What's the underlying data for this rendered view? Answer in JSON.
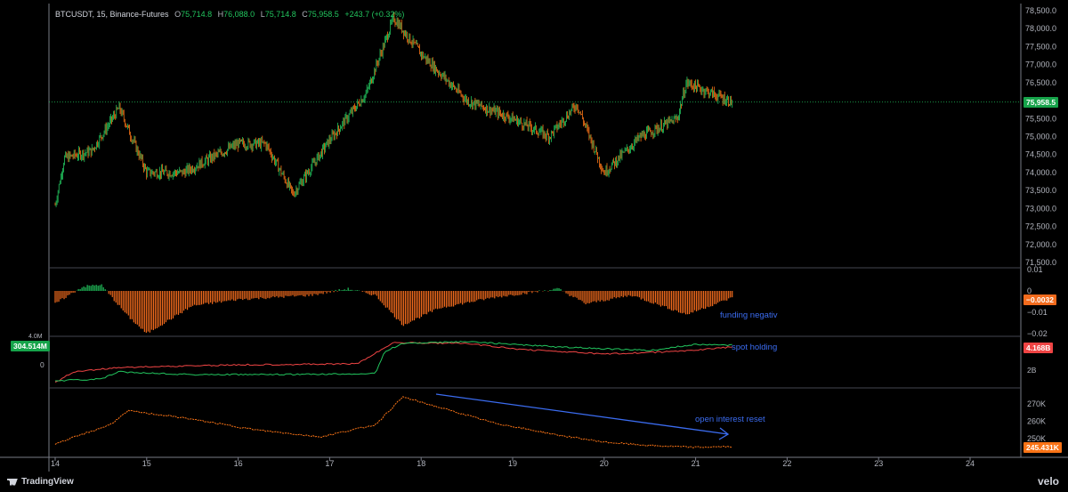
{
  "header": {
    "symbol": "BTCUSDT, 15, Binance-Futures",
    "o_label": "O",
    "o_value": "75,714.8",
    "h_label": "H",
    "h_value": "76,088.0",
    "l_label": "L",
    "l_value": "75,714.8",
    "c_label": "C",
    "c_value": "75,958.5",
    "change": "+243.7 (+0.32%)"
  },
  "colors": {
    "up": "#22c55e",
    "down": "#f97316",
    "funding_pos": "#22c55e",
    "funding_neg": "#f26b1d",
    "line_red": "#ef4444",
    "line_green": "#22c55e",
    "oi_line": "#f97316",
    "annotation": "#3b6cf0",
    "price_tag": "#16a34a",
    "axis_text": "#b2b5be"
  },
  "price_axis": {
    "ticks": [
      "78,500.0",
      "78,000.0",
      "77,500.0",
      "77,000.0",
      "76,500.0",
      "76,000.0",
      "75,500.0",
      "75,000.0",
      "74,500.0",
      "74,000.0",
      "73,500.0",
      "73,000.0",
      "72,500.0",
      "72,000.0",
      "71,500.0"
    ],
    "current": "75,958.5"
  },
  "funding_axis": {
    "ticks": [
      "0.01",
      "0",
      "−0.01",
      "−0.02"
    ],
    "current": "−0.0032"
  },
  "holding_axis": {
    "left_tag": "304.514M",
    "left_top_cut": "4.0M",
    "left_zero": "0",
    "right_tag": "4.168B",
    "right_tick": "2B"
  },
  "oi_axis": {
    "ticks": [
      "270K",
      "260K",
      "250K"
    ],
    "current": "245.431K"
  },
  "x_axis": {
    "ticks": [
      "14",
      "15",
      "16",
      "17",
      "18",
      "19",
      "20",
      "21",
      "22",
      "23",
      "24"
    ]
  },
  "annotations": {
    "funding": "funding negativ",
    "spot": "spot holding",
    "oi": "open interest reset"
  },
  "footer": {
    "brand": "TradingView",
    "right_brand": "velo"
  },
  "chart_data": {
    "type": "line",
    "ylim": [
      71250,
      78600
    ],
    "keypoints_close": [
      {
        "x": 14.0,
        "y": 73100
      },
      {
        "x": 14.1,
        "y": 74400
      },
      {
        "x": 14.4,
        "y": 74600
      },
      {
        "x": 14.7,
        "y": 75800
      },
      {
        "x": 15.0,
        "y": 74000
      },
      {
        "x": 15.4,
        "y": 74000
      },
      {
        "x": 16.0,
        "y": 74800
      },
      {
        "x": 16.3,
        "y": 74800
      },
      {
        "x": 16.6,
        "y": 73400
      },
      {
        "x": 17.0,
        "y": 74900
      },
      {
        "x": 17.4,
        "y": 76200
      },
      {
        "x": 17.7,
        "y": 78300
      },
      {
        "x": 18.0,
        "y": 77300
      },
      {
        "x": 18.5,
        "y": 76000
      },
      {
        "x": 19.0,
        "y": 75500
      },
      {
        "x": 19.4,
        "y": 75000
      },
      {
        "x": 19.7,
        "y": 75900
      },
      {
        "x": 20.0,
        "y": 74000
      },
      {
        "x": 20.4,
        "y": 75000
      },
      {
        "x": 20.8,
        "y": 75500
      },
      {
        "x": 20.9,
        "y": 76500
      },
      {
        "x": 21.4,
        "y": 75958
      }
    ],
    "funding_keypoints": [
      {
        "x": 14.0,
        "y": -0.006
      },
      {
        "x": 14.3,
        "y": 0.002
      },
      {
        "x": 14.5,
        "y": 0.003
      },
      {
        "x": 14.8,
        "y": -0.012
      },
      {
        "x": 15.0,
        "y": -0.02
      },
      {
        "x": 15.5,
        "y": -0.007
      },
      {
        "x": 16.0,
        "y": -0.004
      },
      {
        "x": 16.8,
        "y": -0.002
      },
      {
        "x": 17.2,
        "y": 0.001
      },
      {
        "x": 17.5,
        "y": -0.002
      },
      {
        "x": 17.8,
        "y": -0.016
      },
      {
        "x": 18.2,
        "y": -0.008
      },
      {
        "x": 18.8,
        "y": -0.003
      },
      {
        "x": 19.5,
        "y": 0.001
      },
      {
        "x": 19.8,
        "y": -0.006
      },
      {
        "x": 20.3,
        "y": -0.002
      },
      {
        "x": 20.9,
        "y": -0.011
      },
      {
        "x": 21.4,
        "y": -0.0032
      }
    ],
    "oi_keypoints": [
      {
        "x": 14.0,
        "y": 247
      },
      {
        "x": 14.6,
        "y": 258
      },
      {
        "x": 14.8,
        "y": 266
      },
      {
        "x": 15.4,
        "y": 262
      },
      {
        "x": 16.2,
        "y": 255
      },
      {
        "x": 16.9,
        "y": 251
      },
      {
        "x": 17.5,
        "y": 258
      },
      {
        "x": 17.8,
        "y": 274
      },
      {
        "x": 18.2,
        "y": 268
      },
      {
        "x": 18.8,
        "y": 259
      },
      {
        "x": 19.5,
        "y": 252
      },
      {
        "x": 20.0,
        "y": 248
      },
      {
        "x": 20.5,
        "y": 246
      },
      {
        "x": 21.0,
        "y": 245
      },
      {
        "x": 21.4,
        "y": 245.4
      }
    ]
  }
}
